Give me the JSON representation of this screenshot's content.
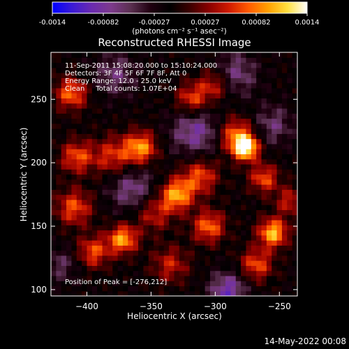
{
  "colorbar": {
    "colors": [
      "#0000ff",
      "#3a1ad6",
      "#6a2ab0",
      "#7d3a8c",
      "#5a3050",
      "#200010",
      "#000000",
      "#3a0000",
      "#8a0000",
      "#d01a00",
      "#ff5a00",
      "#ffa000",
      "#ffe040",
      "#ffffff"
    ],
    "tick_labels": [
      "-0.0014",
      "-0.00082",
      "-0.00027",
      "0.00027",
      "0.00082",
      "0.0014"
    ],
    "unit_label": "(photons cm⁻² s⁻¹ asec⁻²)"
  },
  "header": {
    "footer_date": "14-May-2022 00:08"
  },
  "chart_data": {
    "type": "heatmap",
    "title": "Reconstructed RHESSI Image",
    "xlabel": "Heliocentric X (arcsec)",
    "ylabel": "Heliocentric Y (arcsec)",
    "xlim": [
      -428,
      -236
    ],
    "ylim": [
      95,
      287
    ],
    "x_ticks": [
      -400,
      -350,
      -300,
      -250
    ],
    "y_ticks": [
      100,
      150,
      200,
      250
    ],
    "x_tick_labels": [
      "−400",
      "−350",
      "−300",
      "−250"
    ],
    "y_tick_labels": [
      "100",
      "150",
      "200",
      "250"
    ],
    "value_range": [
      -0.0014,
      0.0014
    ],
    "info_lines": [
      "11-Sep-2011 15:08:20.000 to 15:10:24.000",
      "Detectors: 3F 4F 5F 6F 7F 8F, Att 0",
      "Energy Range: 12.0 - 25.0 keV",
      "Clean     Total counts: 1.07E+04"
    ],
    "peak_label": "Position of Peak = [-276,212]",
    "peak": {
      "x": -276,
      "y": 212,
      "value": 0.0014
    },
    "blobs": [
      {
        "x": -276,
        "y": 212,
        "value": 0.0014,
        "spread": 7
      },
      {
        "x": -284,
        "y": 222,
        "value": 0.0009,
        "spread": 10
      },
      {
        "x": -262,
        "y": 188,
        "value": 0.0008,
        "spread": 8
      },
      {
        "x": -358,
        "y": 212,
        "value": 0.00105,
        "spread": 9
      },
      {
        "x": -380,
        "y": 205,
        "value": 0.0007,
        "spread": 11
      },
      {
        "x": -412,
        "y": 255,
        "value": 0.0009,
        "spread": 9
      },
      {
        "x": -408,
        "y": 205,
        "value": 0.0008,
        "spread": 9
      },
      {
        "x": -410,
        "y": 165,
        "value": 0.0008,
        "spread": 10
      },
      {
        "x": -330,
        "y": 175,
        "value": 0.0011,
        "spread": 9
      },
      {
        "x": -312,
        "y": 190,
        "value": 0.0008,
        "spread": 10
      },
      {
        "x": -348,
        "y": 160,
        "value": 0.0006,
        "spread": 10
      },
      {
        "x": -305,
        "y": 150,
        "value": 0.0009,
        "spread": 9
      },
      {
        "x": -318,
        "y": 250,
        "value": 0.0008,
        "spread": 9
      },
      {
        "x": -300,
        "y": 262,
        "value": 0.0007,
        "spread": 9
      },
      {
        "x": -372,
        "y": 140,
        "value": 0.0011,
        "spread": 8
      },
      {
        "x": -395,
        "y": 130,
        "value": 0.0008,
        "spread": 9
      },
      {
        "x": -255,
        "y": 145,
        "value": 0.0012,
        "spread": 8
      },
      {
        "x": -268,
        "y": 120,
        "value": 0.0008,
        "spread": 9
      },
      {
        "x": -242,
        "y": 170,
        "value": 0.0006,
        "spread": 8
      },
      {
        "x": -335,
        "y": 120,
        "value": 0.0006,
        "spread": 10
      },
      {
        "x": -315,
        "y": 225,
        "value": -0.0007,
        "spread": 14
      },
      {
        "x": -285,
        "y": 270,
        "value": -0.0006,
        "spread": 12
      },
      {
        "x": -378,
        "y": 270,
        "value": -0.0005,
        "spread": 12
      },
      {
        "x": -365,
        "y": 180,
        "value": -0.0006,
        "spread": 13
      },
      {
        "x": -290,
        "y": 100,
        "value": -0.0008,
        "spread": 10
      },
      {
        "x": -255,
        "y": 230,
        "value": -0.0005,
        "spread": 11
      },
      {
        "x": -420,
        "y": 120,
        "value": -0.0004,
        "spread": 10
      }
    ]
  }
}
